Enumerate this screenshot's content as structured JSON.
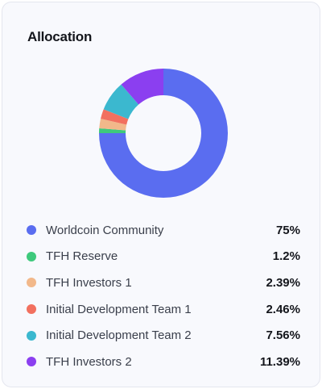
{
  "card": {
    "title": "Allocation"
  },
  "chart_data": {
    "type": "pie",
    "donut": true,
    "start": "top",
    "direction": "clockwise",
    "categories": [
      "Worldcoin Community",
      "TFH Reserve",
      "TFH Investors 1",
      "Initial Development Team 1",
      "Initial Development Team 2",
      "TFH Investors 2"
    ],
    "values": [
      75,
      1.2,
      2.39,
      2.46,
      7.56,
      11.39
    ],
    "value_labels": [
      "75%",
      "1.2%",
      "2.39%",
      "2.46%",
      "7.56%",
      "11.39%"
    ],
    "colors": [
      "#5a6df0",
      "#3ec97c",
      "#f2b88a",
      "#f2705f",
      "#3bb8cf",
      "#8b3ff0"
    ],
    "legend": "bottom"
  }
}
